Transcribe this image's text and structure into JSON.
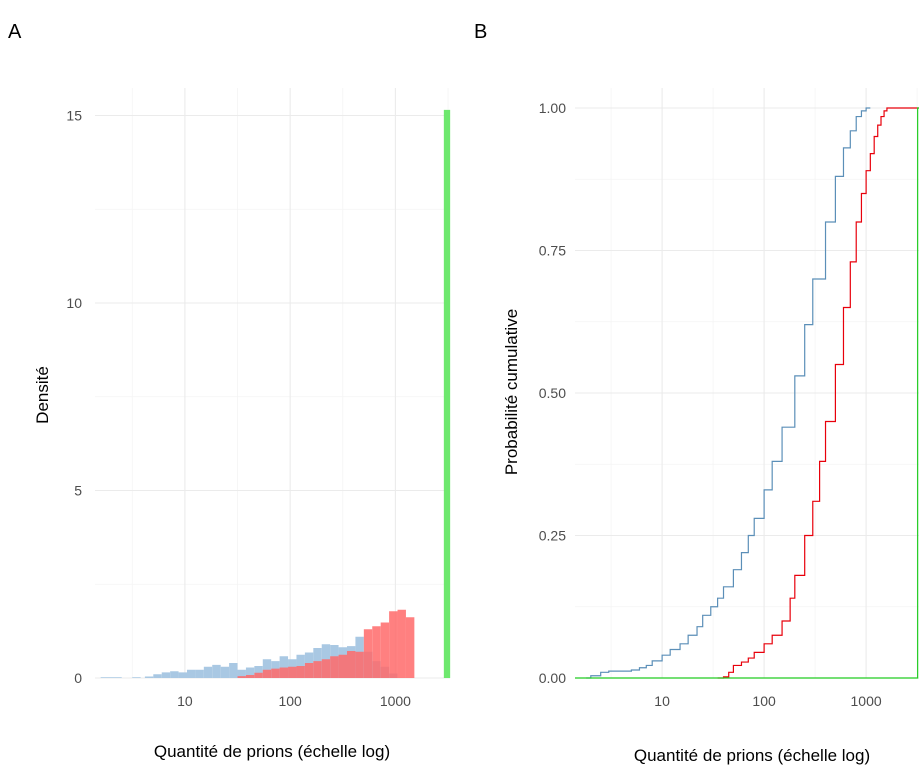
{
  "chart_data": [
    {
      "panel": "A",
      "type": "bar",
      "xlabel": "Quantité de prions (échelle log)",
      "ylabel": "Densité",
      "x_scale": "log10",
      "xlim": [
        1.4,
        3300
      ],
      "ylim": [
        0,
        15.2
      ],
      "x_ticks": [
        10,
        100,
        1000
      ],
      "x_tick_labels": [
        "10",
        "100",
        "1000"
      ],
      "y_ticks": [
        0,
        5,
        10,
        15
      ],
      "y_tick_labels": [
        "0",
        "5",
        "10",
        "15"
      ],
      "grid": true,
      "legend": "none",
      "series": [
        {
          "color": "#a9c8e3",
          "bins_log10": [
            [
              0.2,
              0.4,
              0.02
            ],
            [
              0.5,
              0.58,
              0.02
            ],
            [
              0.62,
              0.7,
              0.04
            ],
            [
              0.7,
              0.78,
              0.1
            ],
            [
              0.78,
              0.86,
              0.15
            ],
            [
              0.86,
              0.94,
              0.18
            ],
            [
              0.94,
              1.02,
              0.15
            ],
            [
              1.02,
              1.1,
              0.22
            ],
            [
              1.1,
              1.18,
              0.22
            ],
            [
              1.18,
              1.26,
              0.3
            ],
            [
              1.26,
              1.34,
              0.35
            ],
            [
              1.34,
              1.42,
              0.3
            ],
            [
              1.42,
              1.5,
              0.4
            ],
            [
              1.5,
              1.58,
              0.22
            ],
            [
              1.58,
              1.66,
              0.28
            ],
            [
              1.66,
              1.74,
              0.32
            ],
            [
              1.74,
              1.82,
              0.5
            ],
            [
              1.82,
              1.9,
              0.45
            ],
            [
              1.9,
              1.98,
              0.58
            ],
            [
              1.98,
              2.06,
              0.5
            ],
            [
              2.06,
              2.14,
              0.62
            ],
            [
              2.14,
              2.22,
              0.68
            ],
            [
              2.22,
              2.3,
              0.8
            ],
            [
              2.3,
              2.38,
              0.9
            ],
            [
              2.38,
              2.46,
              0.88
            ],
            [
              2.46,
              2.54,
              0.82
            ],
            [
              2.54,
              2.62,
              0.85
            ],
            [
              2.62,
              2.7,
              1.1
            ],
            [
              2.7,
              2.78,
              0.7
            ],
            [
              2.78,
              2.86,
              0.45
            ],
            [
              2.86,
              2.94,
              0.3
            ],
            [
              2.94,
              3.02,
              0.12
            ]
          ]
        },
        {
          "color": "#ff6b6b",
          "bins_log10": [
            [
              1.5,
              1.58,
              0.05
            ],
            [
              1.58,
              1.66,
              0.08
            ],
            [
              1.66,
              1.74,
              0.14
            ],
            [
              1.74,
              1.82,
              0.22
            ],
            [
              1.82,
              1.9,
              0.25
            ],
            [
              1.9,
              1.98,
              0.28
            ],
            [
              1.98,
              2.06,
              0.3
            ],
            [
              2.06,
              2.14,
              0.32
            ],
            [
              2.14,
              2.22,
              0.4
            ],
            [
              2.22,
              2.3,
              0.45
            ],
            [
              2.3,
              2.38,
              0.5
            ],
            [
              2.38,
              2.46,
              0.58
            ],
            [
              2.46,
              2.54,
              0.62
            ],
            [
              2.54,
              2.62,
              0.72
            ],
            [
              2.62,
              2.7,
              0.7
            ],
            [
              2.7,
              2.78,
              1.3
            ],
            [
              2.78,
              2.86,
              1.38
            ],
            [
              2.86,
              2.94,
              1.48
            ],
            [
              2.94,
              3.02,
              1.78
            ],
            [
              3.02,
              3.1,
              1.82
            ],
            [
              3.1,
              3.18,
              1.62
            ]
          ]
        },
        {
          "color": "#6ee86e",
          "bins_log10": [
            [
              3.46,
              3.52,
              15.15
            ]
          ]
        }
      ]
    },
    {
      "panel": "B",
      "type": "line",
      "xlabel": "Quantité de prions (échelle log)",
      "ylabel": "Probabilité cumulative",
      "x_scale": "log10",
      "xlim": [
        1.4,
        3300
      ],
      "ylim": [
        0,
        1.0
      ],
      "x_ticks": [
        10,
        100,
        1000
      ],
      "x_tick_labels": [
        "10",
        "100",
        "1000"
      ],
      "y_ticks": [
        0,
        0.25,
        0.5,
        0.75,
        1.0
      ],
      "y_tick_labels": [
        "0.00",
        "0.25",
        "0.50",
        "0.75",
        "1.00"
      ],
      "grid": true,
      "legend": "none",
      "series": [
        {
          "color": "#5b8fb8",
          "x": [
            1.8,
            2.0,
            2.5,
            3,
            4,
            5,
            6,
            7,
            8,
            10,
            12,
            15,
            18,
            22,
            25,
            30,
            35,
            40,
            50,
            60,
            70,
            80,
            100,
            120,
            150,
            200,
            250,
            300,
            400,
            500,
            600,
            700,
            800,
            900,
            1000,
            1100
          ],
          "y": [
            0.0,
            0.004,
            0.01,
            0.012,
            0.012,
            0.014,
            0.018,
            0.022,
            0.03,
            0.04,
            0.05,
            0.06,
            0.075,
            0.09,
            0.11,
            0.125,
            0.14,
            0.16,
            0.19,
            0.22,
            0.25,
            0.28,
            0.33,
            0.38,
            0.44,
            0.53,
            0.62,
            0.7,
            0.8,
            0.88,
            0.93,
            0.96,
            0.985,
            0.995,
            1.0,
            1.0
          ]
        },
        {
          "color": "#e8000b",
          "x": [
            35,
            40,
            45,
            50,
            60,
            70,
            80,
            100,
            120,
            150,
            180,
            200,
            250,
            300,
            350,
            400,
            500,
            600,
            700,
            800,
            900,
            1000,
            1100,
            1200,
            1300,
            1400,
            1500,
            1600,
            3300
          ],
          "y": [
            0.0,
            0.002,
            0.01,
            0.022,
            0.028,
            0.035,
            0.045,
            0.06,
            0.075,
            0.1,
            0.14,
            0.18,
            0.25,
            0.31,
            0.38,
            0.45,
            0.55,
            0.65,
            0.73,
            0.8,
            0.85,
            0.89,
            0.92,
            0.95,
            0.97,
            0.985,
            0.995,
            1.0,
            1.0
          ]
        },
        {
          "color": "#22cc22",
          "x": [
            1.4,
            3200,
            3200,
            3300
          ],
          "y": [
            0.0,
            0.0,
            1.0,
            1.0
          ]
        }
      ]
    }
  ],
  "panels": {
    "A": {
      "tag": "A"
    },
    "B": {
      "tag": "B"
    }
  }
}
